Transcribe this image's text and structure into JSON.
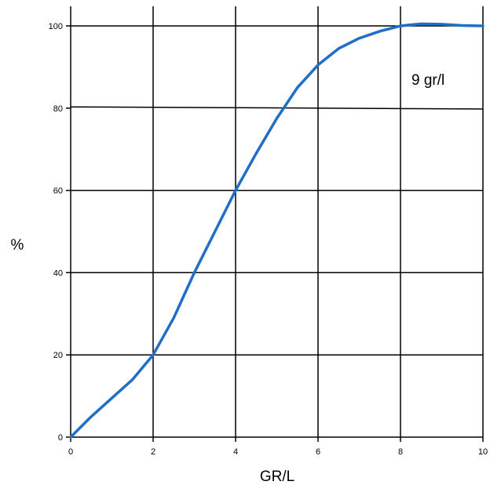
{
  "chart_data": {
    "type": "line",
    "xlabel": "GR/L",
    "ylabel": "%",
    "xlim": [
      0,
      10
    ],
    "ylim": [
      0,
      100
    ],
    "x_ticks": [
      "0",
      "2",
      "4",
      "6",
      "8",
      "10"
    ],
    "y_ticks": [
      "0",
      "20",
      "40",
      "60",
      "80",
      "100"
    ],
    "grid": true,
    "annotations": [
      {
        "text": "9 gr/l",
        "x": 8.3,
        "y": 88
      }
    ],
    "series": [
      {
        "color": "#1f6fc8",
        "x": [
          0,
          0.5,
          1,
          1.5,
          2,
          2.5,
          3,
          3.5,
          4,
          4.5,
          5,
          5.5,
          6,
          6.5,
          7,
          7.5,
          8,
          8.5,
          9,
          9.5,
          10
        ],
        "values": [
          0,
          5,
          9.5,
          14,
          20,
          29,
          40,
          50,
          60,
          69,
          77.5,
          85,
          90.5,
          94.5,
          97,
          98.7,
          100,
          100.5,
          100.4,
          100.1,
          100
        ]
      }
    ],
    "extra_lines": [
      {
        "x": [
          0,
          10
        ],
        "values": [
          80.3,
          79.8
        ]
      }
    ]
  }
}
